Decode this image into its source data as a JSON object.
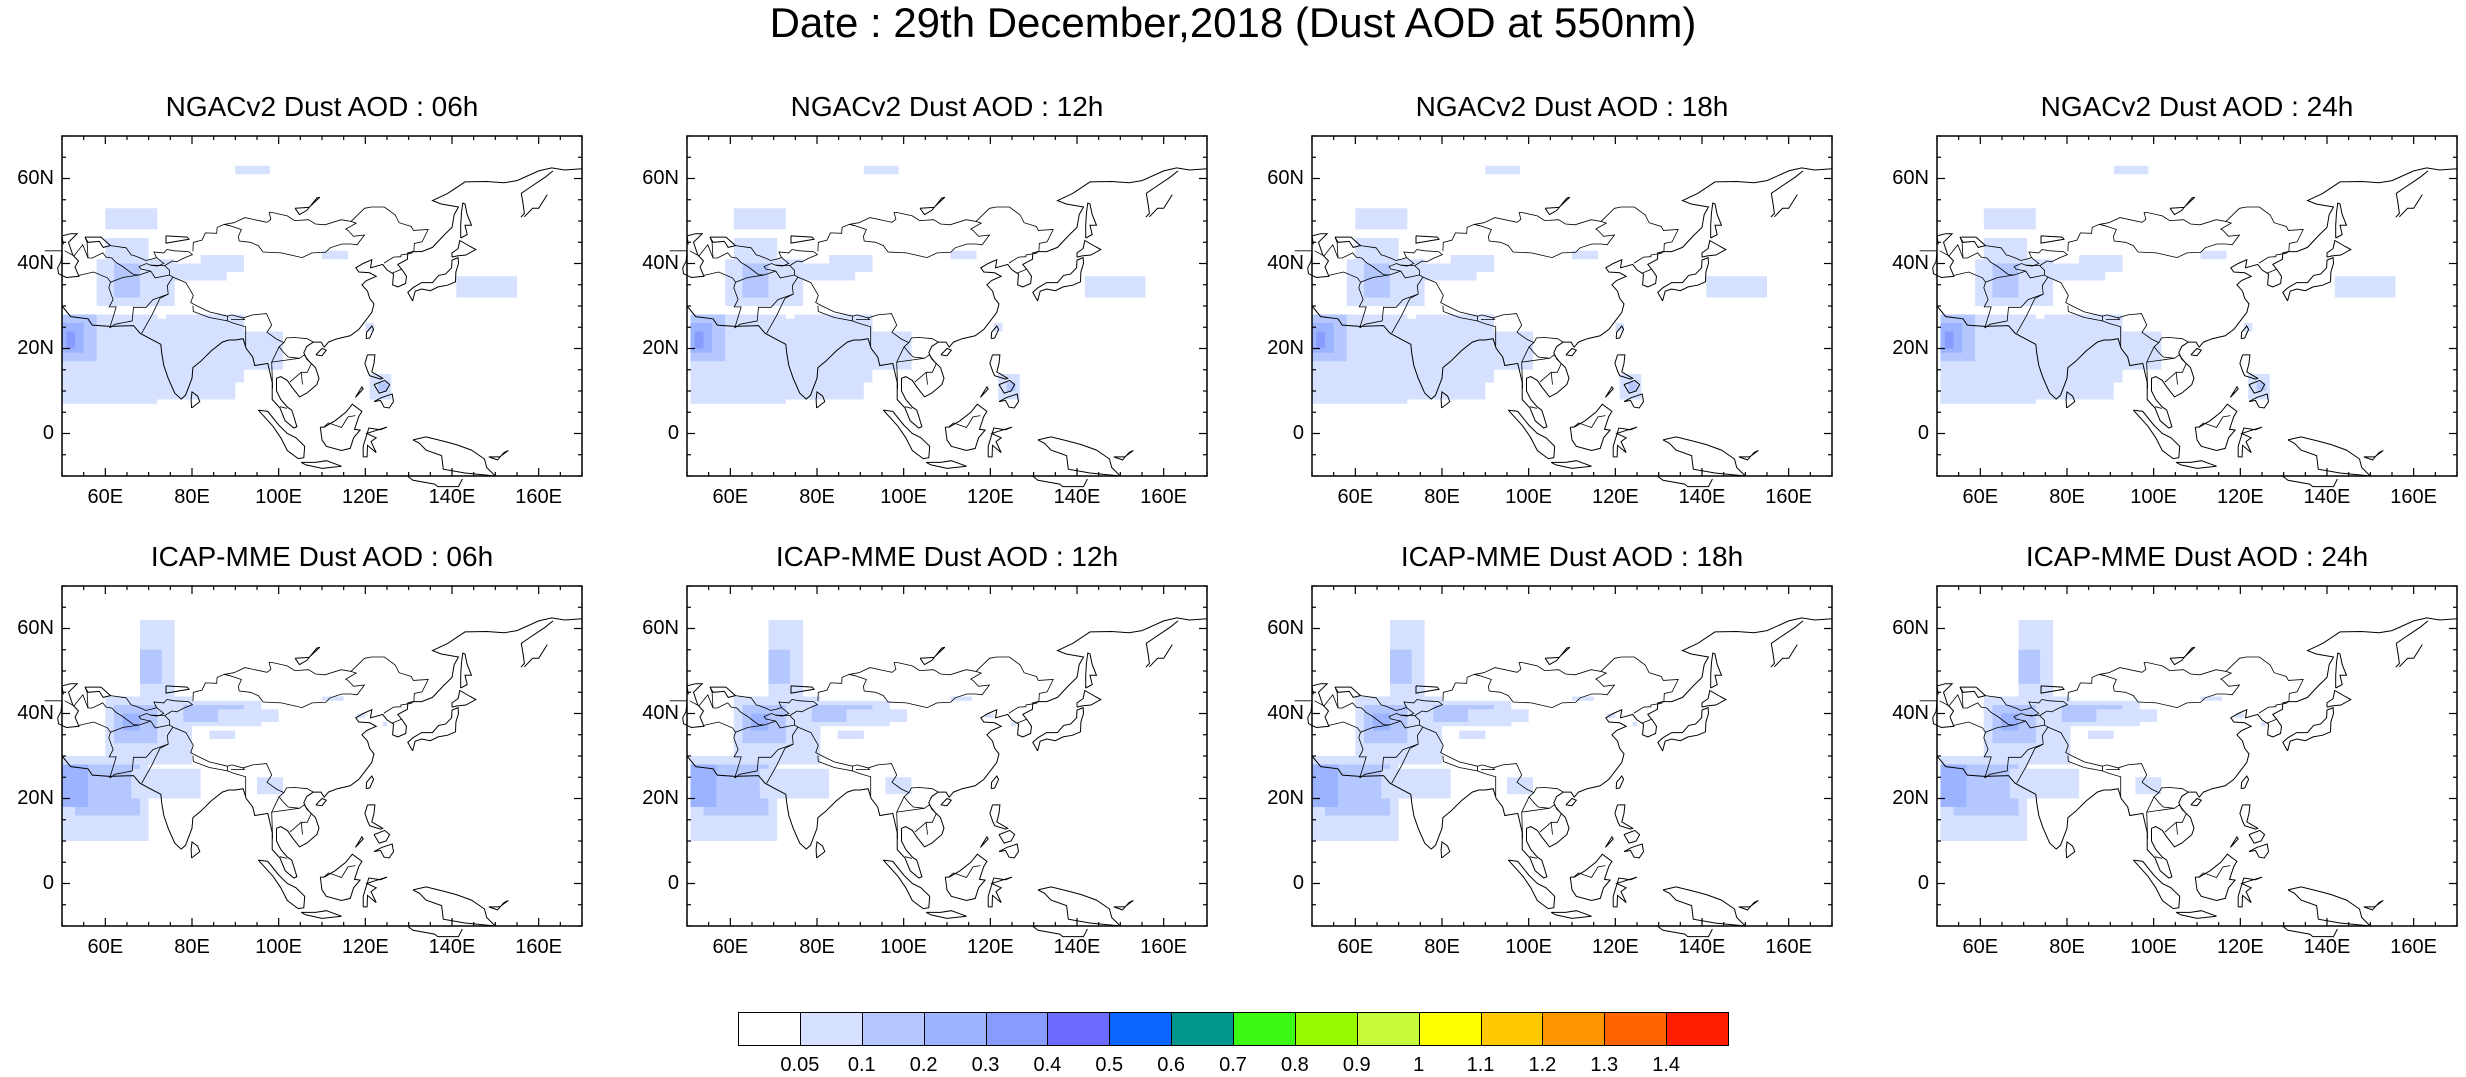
{
  "title": "Date : 29th December,2018 (Dust AOD at 550nm)",
  "panels": [
    {
      "title": "NGACv2 Dust AOD : 06h",
      "model": "NGACv2",
      "hour": "06h"
    },
    {
      "title": "NGACv2 Dust AOD : 12h",
      "model": "NGACv2",
      "hour": "12h"
    },
    {
      "title": "NGACv2 Dust AOD : 18h",
      "model": "NGACv2",
      "hour": "18h"
    },
    {
      "title": "NGACv2 Dust AOD : 24h",
      "model": "NGACv2",
      "hour": "24h"
    },
    {
      "title": "ICAP-MME Dust AOD : 06h",
      "model": "ICAP-MME",
      "hour": "06h"
    },
    {
      "title": "ICAP-MME Dust AOD : 12h",
      "model": "ICAP-MME",
      "hour": "12h"
    },
    {
      "title": "ICAP-MME Dust AOD : 18h",
      "model": "ICAP-MME",
      "hour": "18h"
    },
    {
      "title": "ICAP-MME Dust AOD : 24h",
      "model": "ICAP-MME",
      "hour": "24h"
    }
  ],
  "map": {
    "lon_range": [
      50,
      170
    ],
    "lat_range": [
      -10,
      70
    ],
    "lat_ticks": [
      0,
      20,
      40,
      60
    ],
    "lat_tick_labels": [
      "0",
      "20N",
      "40N",
      "60N"
    ],
    "lon_ticks": [
      60,
      80,
      100,
      120,
      140,
      160
    ],
    "lon_tick_labels": [
      "60E",
      "80E",
      "100E",
      "120E",
      "140E",
      "160E"
    ]
  },
  "colorbar": {
    "labels": [
      "0.05",
      "0.1",
      "0.2",
      "0.3",
      "0.4",
      "0.5",
      "0.6",
      "0.7",
      "0.8",
      "0.9",
      "1",
      "1.1",
      "1.2",
      "1.3",
      "1.4"
    ],
    "colors": [
      "#ffffff",
      "#d6e1ff",
      "#b4c7ff",
      "#9cb4ff",
      "#8a9bff",
      "#6b6bff",
      "#0a64ff",
      "#00968c",
      "#3cfa14",
      "#96fa00",
      "#c8fa3c",
      "#ffff00",
      "#ffc800",
      "#ff9600",
      "#ff6400",
      "#ff1e00"
    ]
  }
}
